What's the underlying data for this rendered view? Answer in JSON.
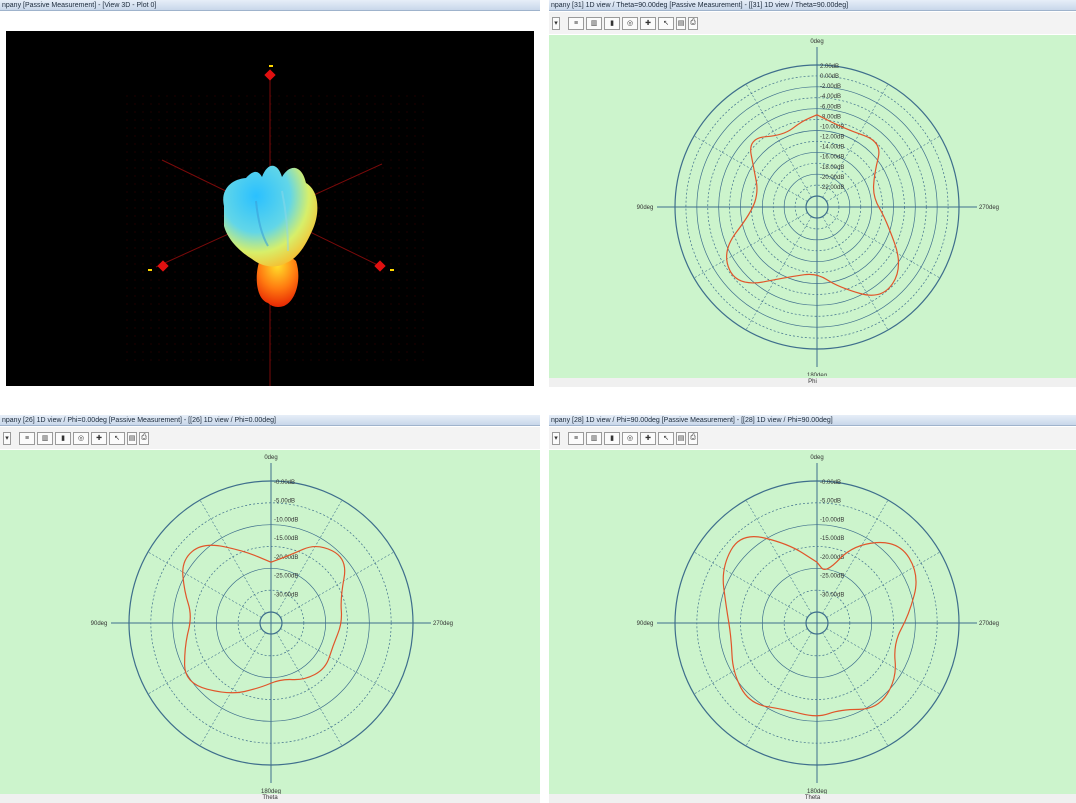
{
  "windows": {
    "view3d": {
      "title": "npany [Passive Measurement] - [View 3D - Plot 0]"
    },
    "theta": {
      "title": "npany [31] 1D view / Theta=90.00deg [Passive Measurement] - [[31] 1D view / Theta=90.00deg]",
      "top_label": "0deg",
      "bottom_label": "180deg",
      "left_label": "90deg",
      "right_label": "270deg",
      "footer": "Phi",
      "db_ticks": [
        "2.00dB",
        "0.00dB",
        "-2.00dB",
        "-4.00dB",
        "-6.00dB",
        "-8.00dB",
        "-10.00dB",
        "-12.00dB",
        "-14.00dB",
        "-16.00dB",
        "-18.00dB",
        "-20.00dB",
        "-22.00dB"
      ]
    },
    "phi0": {
      "title": "npany [26] 1D view / Phi=0.00deg [Passive Measurement] - [[26] 1D view / Phi=0.00deg]",
      "top_label": "0deg",
      "bottom_label": "180deg",
      "left_label": "90deg",
      "right_label": "270deg",
      "footer": "Theta",
      "db_ticks": [
        "-0.00dB",
        "-5.00dB",
        "-10.00dB",
        "-15.00dB",
        "-20.00dB",
        "-25.00dB",
        "-30.00dB"
      ]
    },
    "phi90": {
      "title": "npany [28] 1D view / Phi=90.00deg [Passive Measurement] - [[28] 1D view / Phi=90.00deg]",
      "top_label": "0deg",
      "bottom_label": "180deg",
      "left_label": "90deg",
      "right_label": "270deg",
      "footer": "Theta",
      "db_ticks": [
        "-0.00dB",
        "-5.00dB",
        "-10.00dB",
        "-15.00dB",
        "-20.00dB",
        "-25.00dB",
        "-30.00dB"
      ]
    }
  },
  "colors": {
    "plot_bg": "#ccf4cc",
    "grid": "#3e6e8c",
    "trace": "#e0552a"
  }
}
